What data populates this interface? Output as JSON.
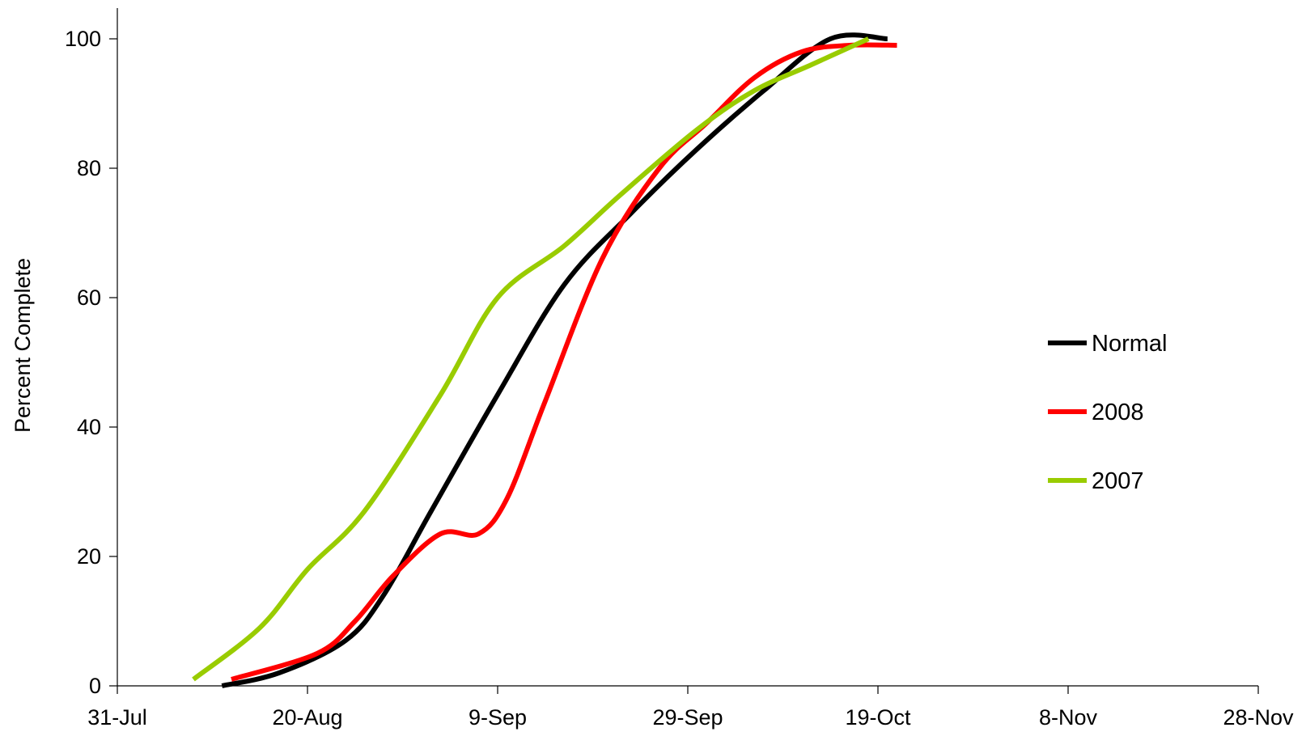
{
  "chart_data": {
    "type": "line",
    "title": "",
    "xlabel": "",
    "ylabel": "Percent Complete",
    "x_axis": {
      "type": "date",
      "year": 2008,
      "range": [
        "2008-07-31",
        "2008-11-28"
      ],
      "tick_dates": [
        "2008-07-31",
        "2008-08-20",
        "2008-09-09",
        "2008-09-29",
        "2008-10-19",
        "2008-11-08",
        "2008-11-28"
      ],
      "tick_labels": [
        "31-Jul",
        "20-Aug",
        "9-Sep",
        "29-Sep",
        "19-Oct",
        "8-Nov",
        "28-Nov"
      ]
    },
    "y_axis": {
      "range": [
        0,
        105
      ],
      "ticks": [
        0,
        20,
        40,
        60,
        80,
        100
      ]
    },
    "grid": false,
    "legend_position": "right",
    "series": [
      {
        "name": "Normal",
        "color": "#000000",
        "x": [
          "2008-08-11",
          "2008-08-17",
          "2008-08-24",
          "2008-08-28",
          "2008-09-02",
          "2008-09-09",
          "2008-09-16",
          "2008-09-23",
          "2008-09-30",
          "2008-10-07",
          "2008-10-14",
          "2008-10-20"
        ],
        "y": [
          0,
          2,
          7,
          14,
          27,
          45,
          62,
          73,
          83,
          92,
          100,
          100
        ]
      },
      {
        "name": "2008",
        "color": "#ff0000",
        "x": [
          "2008-08-12",
          "2008-08-21",
          "2008-08-25",
          "2008-08-29",
          "2008-09-03",
          "2008-09-07",
          "2008-09-10",
          "2008-09-14",
          "2008-09-20",
          "2008-09-26",
          "2008-10-01",
          "2008-10-06",
          "2008-10-11",
          "2008-10-16",
          "2008-10-21"
        ],
        "y": [
          1,
          5,
          10,
          17,
          23.5,
          23.5,
          29,
          44,
          66,
          80,
          87,
          94,
          98,
          99,
          99
        ]
      },
      {
        "name": "2007",
        "color": "#99cc00",
        "x": [
          "2008-08-08",
          "2008-08-15",
          "2008-08-20",
          "2008-08-26",
          "2008-09-03",
          "2008-09-09",
          "2008-09-16",
          "2008-09-22",
          "2008-09-30",
          "2008-10-06",
          "2008-10-12",
          "2008-10-18"
        ],
        "y": [
          1,
          9,
          18,
          27,
          45,
          60,
          68,
          76,
          86,
          92,
          96,
          100
        ]
      }
    ]
  }
}
